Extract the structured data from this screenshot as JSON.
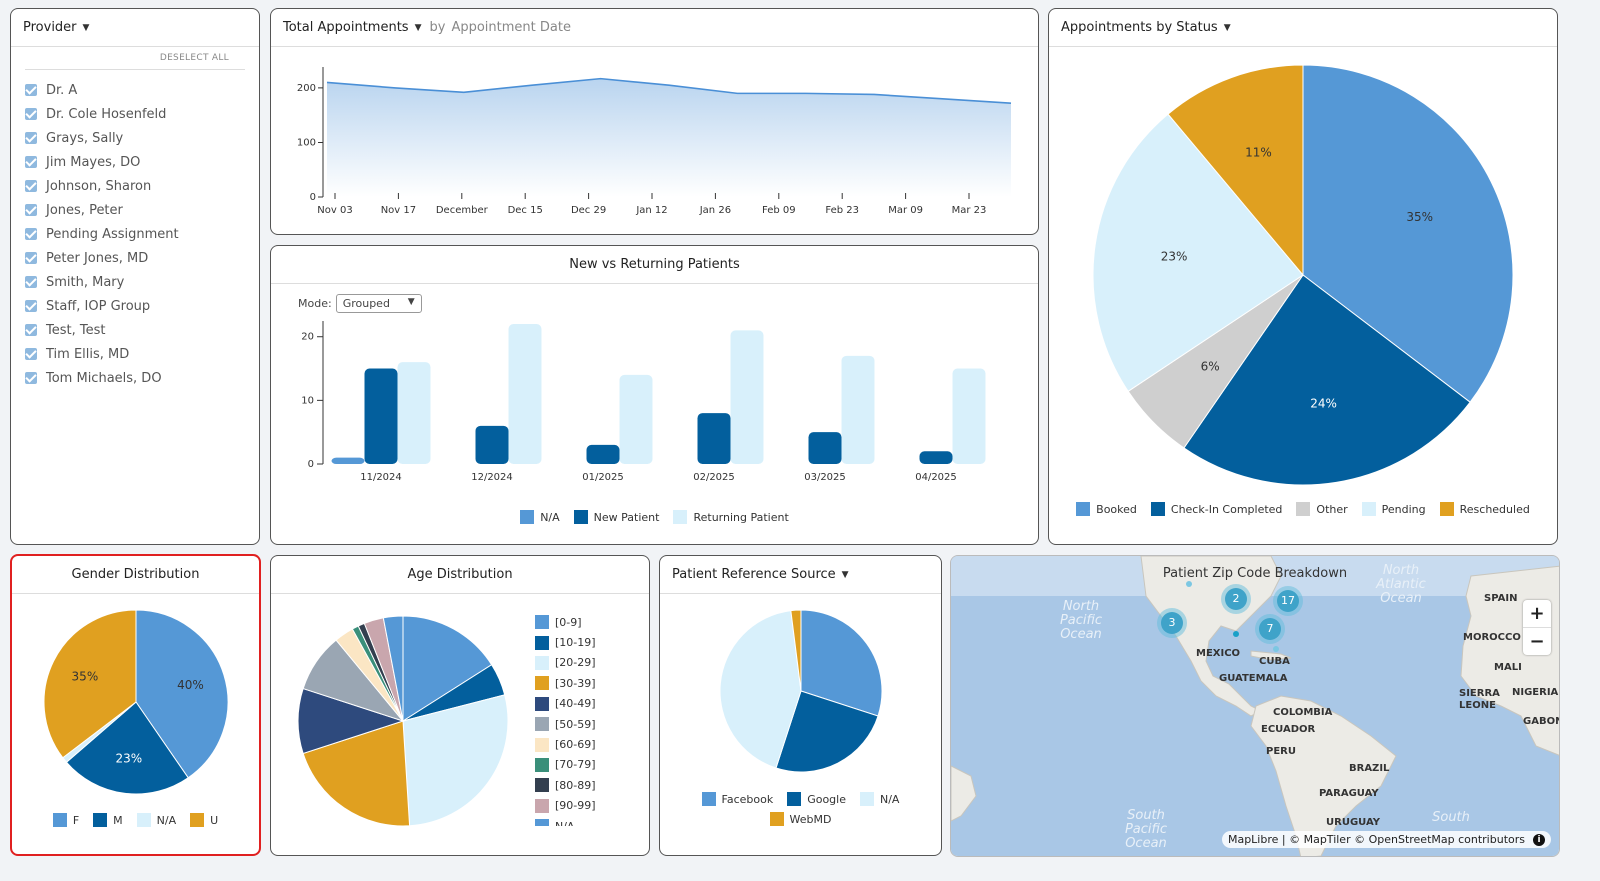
{
  "provider": {
    "title": "Provider",
    "deselect_label": "DESELECT ALL",
    "items": [
      "Dr. A",
      "Dr. Cole Hosenfeld",
      "Grays, Sally",
      "Jim Mayes, DO",
      "Johnson, Sharon",
      "Jones, Peter",
      "Pending Assignment",
      "Peter Jones, MD",
      "Smith, Mary",
      "Staff, IOP Group",
      "Test, Test",
      "Tim Ellis, MD",
      "Tom Michaels, DO"
    ]
  },
  "total_appts": {
    "title": "Total Appointments",
    "by_label": "by",
    "by_value": "Appointment Date"
  },
  "new_vs_returning": {
    "title": "New vs Returning Patients",
    "mode_label": "Mode:",
    "mode_value": "Grouped"
  },
  "appts_status": {
    "title": "Appointments by Status"
  },
  "gender": {
    "title": "Gender Distribution"
  },
  "age": {
    "title": "Age Distribution"
  },
  "referral": {
    "title": "Patient Reference Source"
  },
  "map": {
    "title": "Patient Zip Code Breakdown",
    "attribution": "MapLibre | © MapTiler © OpenStreetMap contributors",
    "zoom_in": "+",
    "zoom_out": "−",
    "clusters": [
      "2",
      "17",
      "3",
      "7"
    ],
    "labels": [
      "MEXICO",
      "CUBA",
      "GUATEMALA",
      "COLOMBIA",
      "ECUADOR",
      "PERU",
      "BRAZIL",
      "PARAGUAY",
      "URUGUAY",
      "SPAIN",
      "MOROCCO",
      "MALI",
      "SIERRA LEONE",
      "NIGERIA",
      "GABON"
    ],
    "oceans": [
      "North Pacific Ocean",
      "North Atlantic Ocean",
      "South Pacific Ocean",
      "South"
    ]
  },
  "chart_data": [
    {
      "type": "area",
      "x": [
        "Nov 03",
        "Nov 17",
        "December",
        "Dec 15",
        "Dec 29",
        "Jan 12",
        "Jan 26",
        "Feb 09",
        "Feb 23",
        "Mar 09",
        "Mar 23"
      ],
      "values": [
        210,
        200,
        192,
        205,
        217,
        205,
        190,
        190,
        188,
        180,
        172
      ],
      "ylim": [
        0,
        220
      ],
      "yticks": [
        "0",
        "100",
        "200"
      ]
    },
    {
      "type": "bar",
      "categories": [
        "11/2024",
        "12/2024",
        "01/2025",
        "02/2025",
        "03/2025",
        "04/2025"
      ],
      "series": [
        {
          "name": "N/A",
          "values": [
            1,
            0,
            0,
            0,
            0,
            0
          ]
        },
        {
          "name": "New Patient",
          "values": [
            15,
            6,
            3,
            8,
            5,
            2
          ]
        },
        {
          "name": "Returning Patient",
          "values": [
            16,
            22,
            14,
            21,
            17,
            15
          ]
        }
      ],
      "ylim": [
        0,
        22
      ],
      "yticks": [
        "0",
        "10",
        "20"
      ],
      "colors": [
        "#5598d6",
        "#035f9d",
        "#d8f0fb"
      ]
    },
    {
      "type": "pie",
      "labels": [
        "Booked",
        "Check-In Completed",
        "Other",
        "Pending",
        "Rescheduled"
      ],
      "values": [
        35,
        24,
        6,
        23,
        11
      ],
      "colors": [
        "#5598d6",
        "#035f9d",
        "#cfcfcf",
        "#d8f0fb",
        "#e0a020"
      ]
    },
    {
      "type": "pie",
      "labels": [
        "F",
        "M",
        "N/A",
        "U"
      ],
      "values": [
        40,
        23,
        1,
        35
      ],
      "colors": [
        "#5598d6",
        "#035f9d",
        "#d8f0fb",
        "#e0a020"
      ]
    },
    {
      "type": "pie",
      "labels": [
        "[0-9]",
        "[10-19]",
        "[20-29]",
        "[30-39]",
        "[40-49]",
        "[50-59]",
        "[60-69]",
        "[70-79]",
        "[80-89]",
        "[90-99]",
        "N/A"
      ],
      "values": [
        16,
        5,
        28,
        21,
        10,
        9,
        3,
        1,
        1,
        3,
        3
      ],
      "colors": [
        "#5598d6",
        "#035f9d",
        "#d8f0fb",
        "#e0a020",
        "#2e4a7d",
        "#9aa6b3",
        "#fbe6c4",
        "#3a8f7a",
        "#333f4f",
        "#c9a6ad",
        "#5598d6"
      ]
    },
    {
      "type": "pie",
      "labels": [
        "Facebook",
        "Google",
        "N/A",
        "WebMD"
      ],
      "values": [
        30,
        25,
        43,
        2
      ],
      "colors": [
        "#5598d6",
        "#035f9d",
        "#d8f0fb",
        "#e0a020"
      ]
    }
  ]
}
